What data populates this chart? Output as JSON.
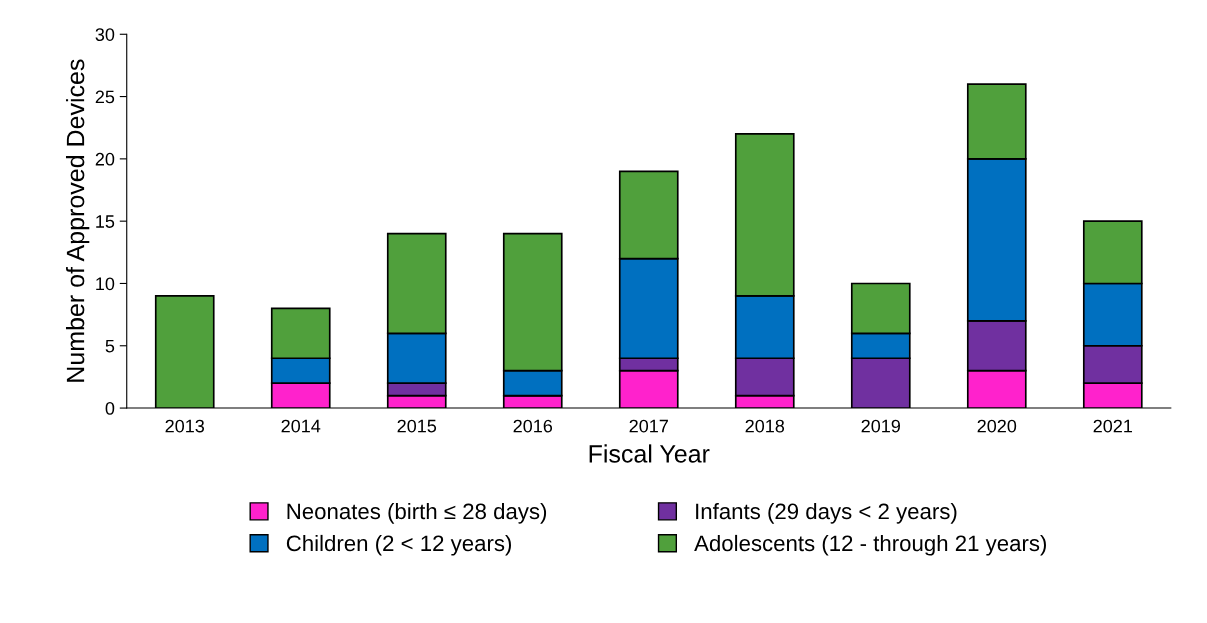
{
  "chart_data": {
    "type": "bar",
    "stacked": true,
    "xlabel": "Fiscal Year",
    "ylabel": "Number of Approved Devices",
    "categories": [
      "2013",
      "2014",
      "2015",
      "2016",
      "2017",
      "2018",
      "2019",
      "2020",
      "2021"
    ],
    "series": [
      {
        "name": "Neonates (birth ≤ 28 days)",
        "color": "#ff22cc",
        "values": [
          0,
          2,
          1,
          1,
          3,
          1,
          0,
          3,
          2
        ]
      },
      {
        "name": "Infants (29 days < 2 years)",
        "color": "#7030a0",
        "values": [
          0,
          0,
          1,
          0,
          1,
          3,
          4,
          4,
          3
        ]
      },
      {
        "name": "Children (2 < 12 years)",
        "color": "#0070c0",
        "values": [
          0,
          2,
          4,
          2,
          8,
          5,
          2,
          13,
          5
        ]
      },
      {
        "name": "Adolescents (12 - through 21 years)",
        "color": "#50a03c",
        "values": [
          9,
          4,
          8,
          11,
          7,
          13,
          4,
          6,
          5
        ]
      }
    ],
    "ylim": [
      0,
      30
    ],
    "yticks": [
      0,
      5,
      10,
      15,
      20,
      25,
      30
    ],
    "grid": false,
    "legend": "bottom"
  }
}
